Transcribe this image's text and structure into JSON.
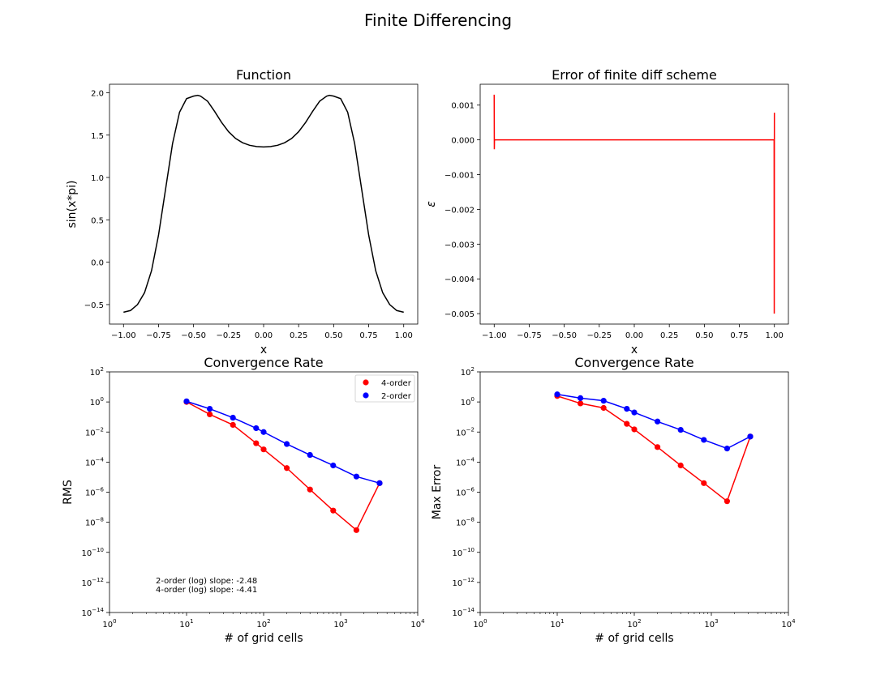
{
  "suptitle": "Finite Differencing",
  "chart_data": [
    {
      "id": "function",
      "type": "line",
      "title": "Function",
      "xlabel": "x",
      "ylabel": "sin(x*pi)",
      "xlim": [
        -1.1,
        1.1
      ],
      "ylim": [
        -0.73,
        2.1
      ],
      "xticks": [
        -1.0,
        -0.75,
        -0.5,
        -0.25,
        0.0,
        0.25,
        0.5,
        0.75,
        1.0
      ],
      "xticklabels": [
        "−1.00",
        "−0.75",
        "−0.50",
        "−0.25",
        "0.00",
        "0.25",
        "0.50",
        "0.75",
        "1.00"
      ],
      "yticks": [
        -0.5,
        0.0,
        0.5,
        1.0,
        1.5,
        2.0
      ],
      "yticklabels": [
        "−0.5",
        "0.0",
        "0.5",
        "1.0",
        "1.5",
        "2.0"
      ],
      "grid": false,
      "color": "#000000",
      "series": [
        {
          "x": [
            -1.0,
            -0.95,
            -0.9,
            -0.85,
            -0.8,
            -0.75,
            -0.7,
            -0.65,
            -0.6,
            -0.55,
            -0.5,
            -0.47,
            -0.45,
            -0.4,
            -0.35,
            -0.3,
            -0.25,
            -0.2,
            -0.15,
            -0.1,
            -0.05,
            0.0,
            0.05,
            0.1,
            0.15,
            0.2,
            0.25,
            0.3,
            0.35,
            0.4,
            0.45,
            0.47,
            0.5,
            0.55,
            0.6,
            0.65,
            0.7,
            0.75,
            0.8,
            0.85,
            0.9,
            0.95,
            1.0
          ],
          "y": [
            -0.59,
            -0.57,
            -0.5,
            -0.36,
            -0.1,
            0.32,
            0.86,
            1.4,
            1.77,
            1.93,
            1.96,
            1.97,
            1.96,
            1.9,
            1.78,
            1.65,
            1.54,
            1.46,
            1.41,
            1.38,
            1.365,
            1.36,
            1.365,
            1.38,
            1.41,
            1.46,
            1.54,
            1.65,
            1.78,
            1.9,
            1.96,
            1.97,
            1.96,
            1.93,
            1.77,
            1.4,
            0.86,
            0.32,
            -0.1,
            -0.36,
            -0.5,
            -0.57,
            -0.59
          ]
        }
      ]
    },
    {
      "id": "error",
      "type": "line",
      "title": "Error of finite diff scheme",
      "xlabel": "x",
      "ylabel": "ε",
      "xlim": [
        -1.1,
        1.1
      ],
      "ylim": [
        -0.0053,
        0.0016
      ],
      "xticks": [
        -1.0,
        -0.75,
        -0.5,
        -0.25,
        0.0,
        0.25,
        0.5,
        0.75,
        1.0
      ],
      "xticklabels": [
        "−1.00",
        "−0.75",
        "−0.50",
        "−0.25",
        "0.00",
        "0.25",
        "0.50",
        "0.75",
        "1.00"
      ],
      "yticks": [
        -0.005,
        -0.004,
        -0.003,
        -0.002,
        -0.001,
        0.0,
        0.001
      ],
      "yticklabels": [
        "−0.005",
        "−0.004",
        "−0.003",
        "−0.002",
        "−0.001",
        "0.000",
        "0.001"
      ],
      "grid": false,
      "color": "#ff0000",
      "series": [
        {
          "x": [
            -1.0,
            -0.999,
            -0.998,
            -0.997,
            0.997,
            0.998,
            0.999,
            1.0
          ],
          "y": [
            0.0013,
            -0.00027,
            0.0,
            0.0,
            0.0,
            0.0,
            -0.005,
            0.00078
          ]
        }
      ]
    },
    {
      "id": "rms",
      "type": "line",
      "title": "Convergence Rate",
      "xlabel": "# of grid cells",
      "ylabel": "RMS",
      "xscale": "log",
      "yscale": "log",
      "xlim": [
        1,
        10000
      ],
      "ylim": [
        1e-14,
        100
      ],
      "xticks": [
        1,
        10,
        100,
        1000,
        10000
      ],
      "xtick_exponents": [
        "0",
        "1",
        "2",
        "3",
        "4"
      ],
      "yticks": [
        1e-14,
        1e-12,
        1e-10,
        1e-08,
        1e-06,
        0.0001,
        0.01,
        1,
        100
      ],
      "ytick_exponents": [
        "−14",
        "−12",
        "−10",
        "−8",
        "−6",
        "−4",
        "−2",
        "0",
        "2"
      ],
      "tick_base": "10",
      "grid": false,
      "legend_position": "top-right",
      "series": [
        {
          "name": "4-order",
          "color": "#ff0000",
          "x": [
            10,
            20,
            40,
            80,
            100,
            200,
            400,
            800,
            1600,
            3200
          ],
          "y": [
            1.0,
            0.15,
            0.03,
            0.0018,
            0.0007,
            4e-05,
            1.5e-06,
            6e-08,
            3e-09,
            4e-06
          ]
        },
        {
          "name": "2-order",
          "color": "#0000ff",
          "x": [
            10,
            20,
            40,
            80,
            100,
            200,
            400,
            800,
            1600,
            3200
          ],
          "y": [
            1.1,
            0.35,
            0.09,
            0.018,
            0.01,
            0.0016,
            0.0003,
            6e-05,
            1.1e-05,
            4e-06
          ]
        }
      ],
      "annotations": [
        "2-order (log) slope: -2.48",
        "4-order (log) slope: -4.41"
      ]
    },
    {
      "id": "max",
      "type": "line",
      "title": "Convergence Rate",
      "xlabel": "# of grid cells",
      "ylabel": "Max Error",
      "xscale": "log",
      "yscale": "log",
      "xlim": [
        1,
        10000
      ],
      "ylim": [
        1e-14,
        100
      ],
      "xticks": [
        1,
        10,
        100,
        1000,
        10000
      ],
      "xtick_exponents": [
        "0",
        "1",
        "2",
        "3",
        "4"
      ],
      "yticks": [
        1e-14,
        1e-12,
        1e-10,
        1e-08,
        1e-06,
        0.0001,
        0.01,
        1,
        100
      ],
      "ytick_exponents": [
        "−14",
        "−12",
        "−10",
        "−8",
        "−6",
        "−4",
        "−2",
        "0",
        "2"
      ],
      "tick_base": "10",
      "grid": false,
      "series": [
        {
          "name": "4-order",
          "color": "#ff0000",
          "x": [
            10,
            20,
            40,
            80,
            100,
            200,
            400,
            800,
            1600,
            3200
          ],
          "y": [
            2.5,
            0.8,
            0.4,
            0.035,
            0.015,
            0.001,
            6e-05,
            4e-06,
            2.5e-07,
            0.005
          ]
        },
        {
          "name": "2-order",
          "color": "#0000ff",
          "x": [
            10,
            20,
            40,
            80,
            100,
            200,
            400,
            800,
            1600,
            3200
          ],
          "y": [
            3.2,
            1.8,
            1.2,
            0.35,
            0.2,
            0.05,
            0.014,
            0.003,
            0.0008,
            0.005
          ]
        }
      ]
    }
  ]
}
